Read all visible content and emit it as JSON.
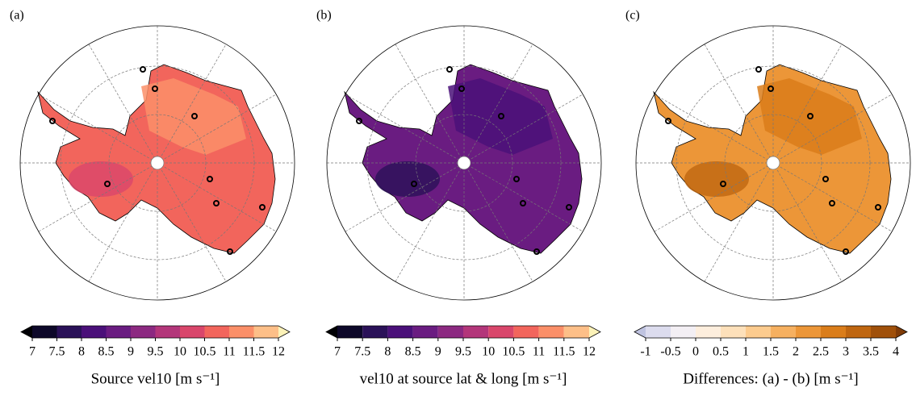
{
  "panels": [
    {
      "label": "(a)",
      "colorbar": {
        "title": "Source vel10 [m s⁻¹]",
        "ticks": [
          7,
          7.5,
          8,
          8.5,
          9,
          9.5,
          10,
          10.5,
          11,
          11.5,
          12
        ],
        "colors": [
          "#0d0829",
          "#2a1158",
          "#4a1079",
          "#6a1c81",
          "#8c2981",
          "#b3367a",
          "#d9466b",
          "#f2655c",
          "#fb8f68",
          "#fdbf88"
        ],
        "extend_colors": [
          "#000004",
          "#fcf2b8"
        ]
      }
    },
    {
      "label": "(b)",
      "colorbar": {
        "title": "vel10 at source lat & long [m s⁻¹]",
        "ticks": [
          7,
          7.5,
          8,
          8.5,
          9,
          9.5,
          10,
          10.5,
          11,
          11.5,
          12
        ],
        "colors": [
          "#0d0829",
          "#2a1158",
          "#4a1079",
          "#6a1c81",
          "#8c2981",
          "#b3367a",
          "#d9466b",
          "#f2655c",
          "#fb8f68",
          "#fdbf88"
        ],
        "extend_colors": [
          "#000004",
          "#fcf2b8"
        ]
      }
    },
    {
      "label": "(c)",
      "colorbar": {
        "title": "Differences: (a) - (b) [m s⁻¹]",
        "ticks": [
          -1,
          -0.5,
          0,
          0.5,
          1,
          1.5,
          2,
          2.5,
          3,
          3.5,
          4
        ],
        "colors": [
          "#dcdcee",
          "#f3eff4",
          "#fdeedd",
          "#fde0ba",
          "#fccb8e",
          "#f6b060",
          "#ec9638",
          "#da7d1a",
          "#bf6610",
          "#a0500a"
        ],
        "extend_colors": [
          "#bfc3e0",
          "#7f3b08"
        ]
      }
    }
  ]
}
